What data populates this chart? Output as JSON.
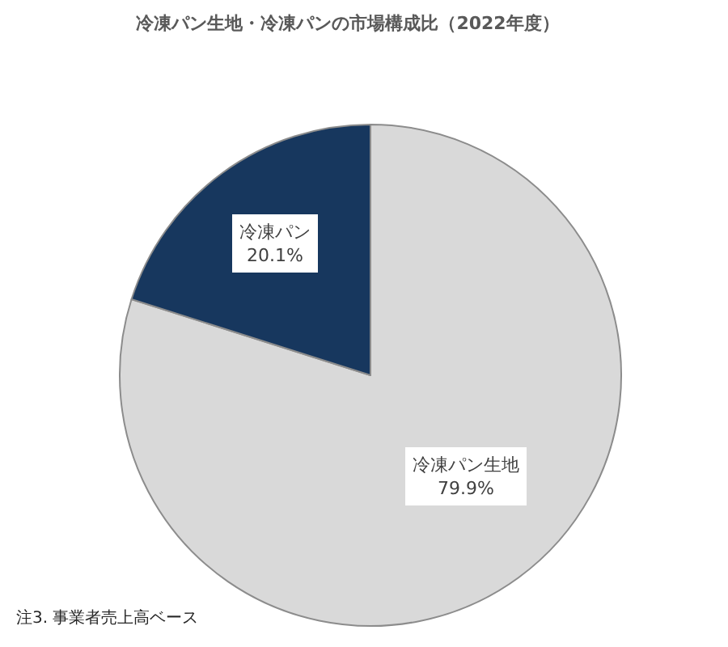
{
  "chart_data": {
    "type": "pie",
    "title": "冷凍パン生地・冷凍パンの市場構成比（2022年度）",
    "categories": [
      "冷凍パン生地",
      "冷凍パン"
    ],
    "values": [
      79.9,
      20.1
    ],
    "colors": [
      "#d9d9d9",
      "#17375e"
    ],
    "value_labels": [
      "79.9%",
      "20.1%"
    ],
    "annotations": [
      "注3. 事業者売上高ベース"
    ]
  }
}
